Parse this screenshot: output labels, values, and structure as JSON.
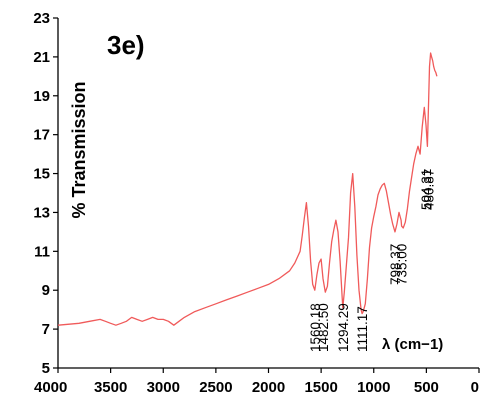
{
  "chart_data": {
    "type": "line",
    "panel_label": "3e)",
    "xlabel": "λ (cm−1)",
    "ylabel": "% Transmission",
    "xlim": [
      4000,
      0
    ],
    "ylim": [
      5,
      23
    ],
    "x_reversed": true,
    "xticks": [
      4000,
      3500,
      3000,
      2500,
      2000,
      1500,
      1000,
      500,
      0
    ],
    "yticks": [
      5,
      7,
      9,
      11,
      13,
      15,
      17,
      19,
      21,
      23
    ],
    "line_color": "#f05a5a",
    "grid": false,
    "series": [
      {
        "x": [
          4000,
          3800,
          3700,
          3600,
          3550,
          3500,
          3450,
          3400,
          3350,
          3300,
          3250,
          3200,
          3150,
          3100,
          3050,
          3000,
          2950,
          2900,
          2850,
          2800,
          2700,
          2600,
          2500,
          2400,
          2300,
          2200,
          2100,
          2000,
          1900,
          1800,
          1750,
          1700,
          1680,
          1660,
          1640,
          1620,
          1600,
          1580,
          1560,
          1540,
          1520,
          1500,
          1482,
          1460,
          1440,
          1420,
          1400,
          1380,
          1360,
          1340,
          1320,
          1300,
          1294,
          1280,
          1260,
          1240,
          1220,
          1200,
          1180,
          1160,
          1140,
          1120,
          1111,
          1100,
          1080,
          1060,
          1040,
          1020,
          1000,
          980,
          960,
          940,
          920,
          900,
          880,
          860,
          840,
          820,
          798,
          780,
          760,
          740,
          735,
          720,
          700,
          680,
          660,
          640,
          620,
          600,
          580,
          560,
          540,
          520,
          504,
          490,
          480,
          470,
          460,
          450,
          440,
          430,
          420,
          410,
          400
        ],
        "y": [
          7.2,
          7.3,
          7.4,
          7.5,
          7.4,
          7.3,
          7.2,
          7.3,
          7.4,
          7.6,
          7.5,
          7.4,
          7.5,
          7.6,
          7.5,
          7.5,
          7.4,
          7.2,
          7.4,
          7.6,
          7.9,
          8.1,
          8.3,
          8.5,
          8.7,
          8.9,
          9.1,
          9.3,
          9.6,
          10.0,
          10.4,
          11.0,
          11.8,
          12.7,
          13.5,
          12.3,
          10.5,
          9.3,
          9.0,
          9.8,
          10.4,
          10.6,
          9.6,
          8.9,
          9.2,
          10.4,
          11.5,
          12.1,
          12.6,
          12.0,
          10.5,
          8.6,
          8.1,
          8.9,
          10.3,
          11.7,
          14.0,
          15.0,
          13.3,
          10.8,
          9.0,
          8.0,
          7.8,
          7.9,
          8.3,
          9.6,
          11.2,
          12.2,
          12.8,
          13.3,
          13.9,
          14.2,
          14.4,
          14.5,
          14.1,
          13.5,
          12.9,
          12.4,
          12.0,
          12.4,
          13.0,
          12.6,
          12.3,
          12.2,
          12.5,
          13.2,
          14.1,
          14.8,
          15.5,
          16.0,
          16.4,
          16.0,
          17.4,
          18.4,
          17.5,
          16.4,
          18.5,
          20.5,
          21.2,
          21.0,
          20.8,
          20.5,
          20.3,
          20.2,
          20.0
        ]
      }
    ],
    "annotations": [
      {
        "text": "1560.18",
        "x": 1560
      },
      {
        "text": "1482.50",
        "x": 1482
      },
      {
        "text": "1294.29",
        "x": 1294
      },
      {
        "text": "1111.17",
        "x": 1111
      },
      {
        "text": "798.37",
        "x": 798
      },
      {
        "text": "735.00",
        "x": 735
      },
      {
        "text": "504.31",
        "x": 504
      },
      {
        "text": "480.87",
        "x": 480
      }
    ]
  }
}
